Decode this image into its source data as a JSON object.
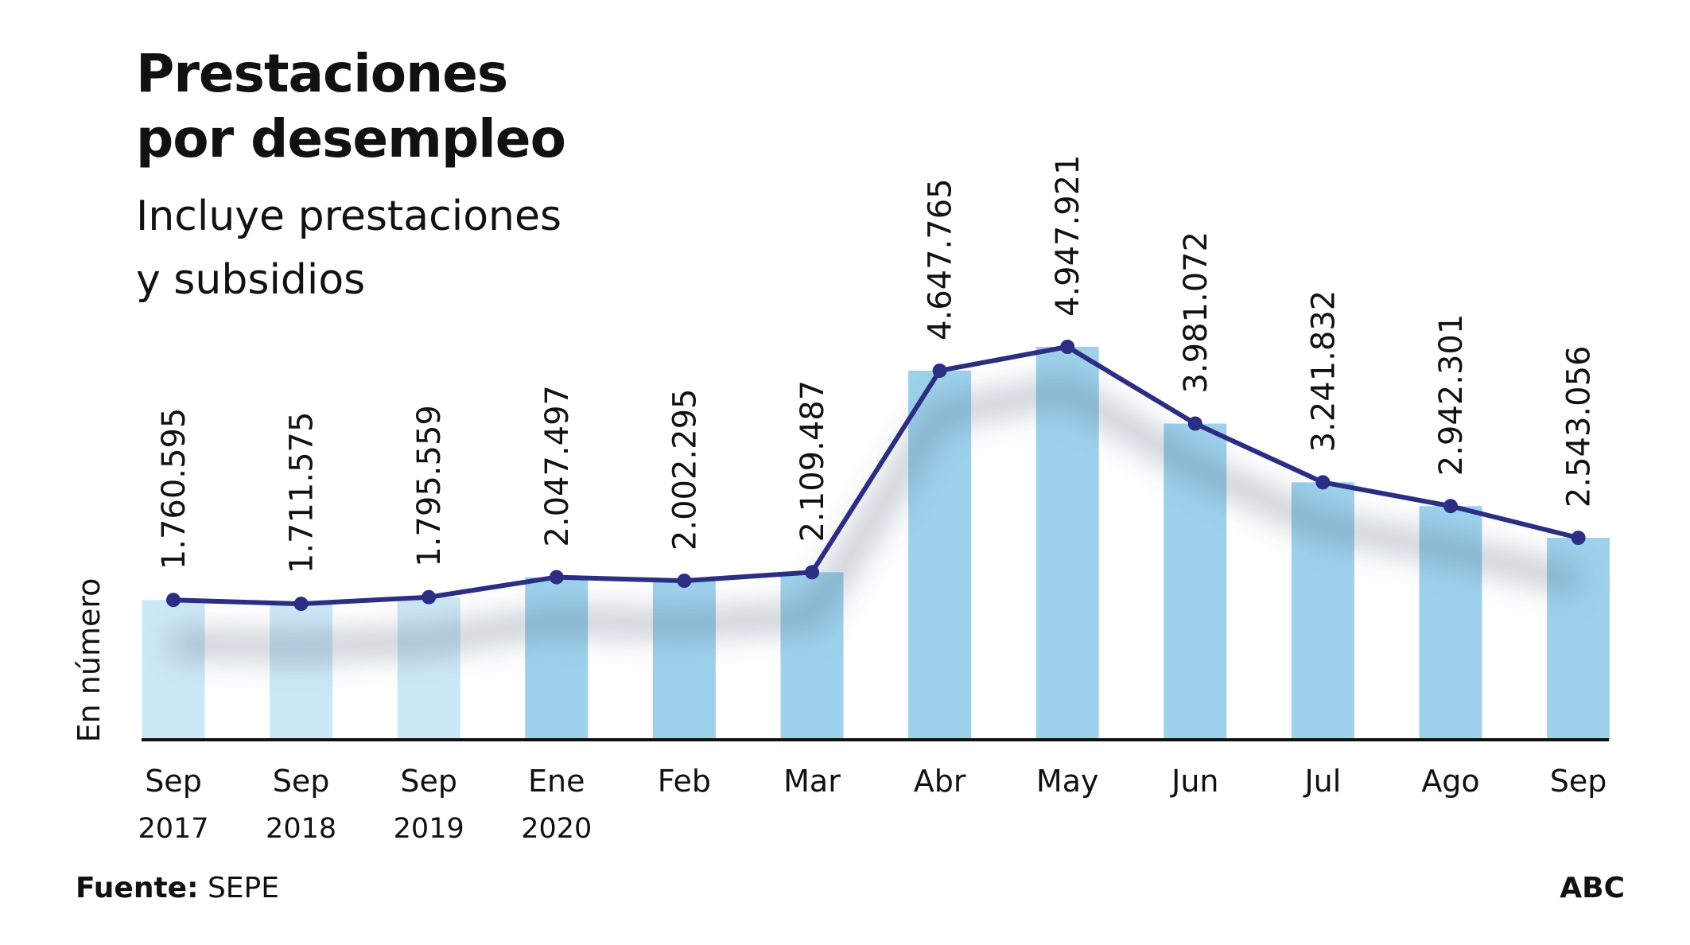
{
  "title_line1": "Prestaciones",
  "title_line2": "por desempleo",
  "subtitle_line1": "Incluye prestaciones",
  "subtitle_line2": "y subsidios",
  "source_label": "Fuente:",
  "source_value": "SEPE",
  "brand": "ABC",
  "chart_data": {
    "type": "bar",
    "ylabel": "En número",
    "categories": [
      "Sep 2017",
      "Sep 2018",
      "Sep 2019",
      "Ene 2020",
      "Feb",
      "Mar",
      "Abr",
      "May",
      "Jun",
      "Jul",
      "Ago",
      "Sep"
    ],
    "category_lines": [
      [
        "Sep",
        "2017"
      ],
      [
        "Sep",
        "2018"
      ],
      [
        "Sep",
        "2019"
      ],
      [
        "Ene",
        "2020"
      ],
      [
        "Feb",
        ""
      ],
      [
        "Mar",
        ""
      ],
      [
        "Abr",
        ""
      ],
      [
        "May",
        ""
      ],
      [
        "Jun",
        ""
      ],
      [
        "Jul",
        ""
      ],
      [
        "Ago",
        ""
      ],
      [
        "Sep",
        ""
      ]
    ],
    "values": [
      1760595,
      1711575,
      1795559,
      2047497,
      2002295,
      2109487,
      4647765,
      4947921,
      3981072,
      3241832,
      2942301,
      2543056
    ],
    "value_labels": [
      "1.760.595",
      "1.711.575",
      "1.795.559",
      "2.047.497",
      "2.002.295",
      "2.109.487",
      "4.647.765",
      "4.947.921",
      "3.981.072",
      "3.241.832",
      "2.942.301",
      "2.543.056"
    ],
    "overlay": "line with markers over bars",
    "ylim": [
      0,
      4947921
    ],
    "grid": false,
    "colors": {
      "bar_light": "#cce7f5",
      "bar": "#9dd1ec",
      "line": "#2b2e83",
      "axis": "#111111"
    },
    "light_bar_count": 3
  }
}
